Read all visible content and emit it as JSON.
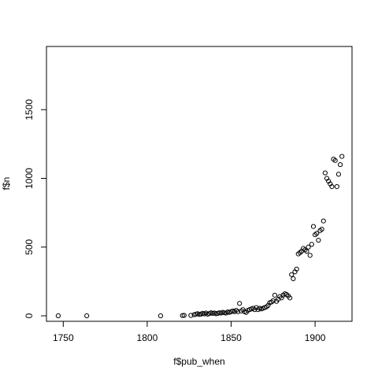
{
  "chart_data": {
    "type": "scatter",
    "title": "",
    "xlabel": "f$pub_when",
    "ylabel": "f$n",
    "xlim": [
      1740,
      1922
    ],
    "ylim": [
      -40,
      1960
    ],
    "xticks": [
      1750,
      1800,
      1850,
      1900
    ],
    "yticks": [
      0,
      500,
      1000,
      1500
    ],
    "grid": false,
    "point_style": "open-circle",
    "points": [
      [
        1747,
        0
      ],
      [
        1764,
        0
      ],
      [
        1808,
        0
      ],
      [
        1821,
        2
      ],
      [
        1822,
        3
      ],
      [
        1826,
        3
      ],
      [
        1828,
        8
      ],
      [
        1829,
        12
      ],
      [
        1830,
        15
      ],
      [
        1831,
        10
      ],
      [
        1832,
        12
      ],
      [
        1833,
        18
      ],
      [
        1834,
        14
      ],
      [
        1835,
        20
      ],
      [
        1836,
        12
      ],
      [
        1837,
        16
      ],
      [
        1838,
        22
      ],
      [
        1839,
        18
      ],
      [
        1840,
        20
      ],
      [
        1841,
        15
      ],
      [
        1842,
        18
      ],
      [
        1843,
        22
      ],
      [
        1844,
        20
      ],
      [
        1845,
        25
      ],
      [
        1846,
        22
      ],
      [
        1847,
        20
      ],
      [
        1848,
        28
      ],
      [
        1849,
        25
      ],
      [
        1850,
        30
      ],
      [
        1851,
        35
      ],
      [
        1852,
        30
      ],
      [
        1853,
        40
      ],
      [
        1854,
        30
      ],
      [
        1855,
        90
      ],
      [
        1856,
        35
      ],
      [
        1857,
        45
      ],
      [
        1858,
        30
      ],
      [
        1859,
        25
      ],
      [
        1860,
        40
      ],
      [
        1861,
        45
      ],
      [
        1862,
        50
      ],
      [
        1863,
        55
      ],
      [
        1864,
        45
      ],
      [
        1865,
        60
      ],
      [
        1866,
        45
      ],
      [
        1867,
        55
      ],
      [
        1868,
        50
      ],
      [
        1869,
        55
      ],
      [
        1870,
        60
      ],
      [
        1871,
        65
      ],
      [
        1872,
        75
      ],
      [
        1873,
        95
      ],
      [
        1874,
        100
      ],
      [
        1875,
        110
      ],
      [
        1876,
        150
      ],
      [
        1877,
        105
      ],
      [
        1878,
        120
      ],
      [
        1879,
        140
      ],
      [
        1880,
        130
      ],
      [
        1881,
        150
      ],
      [
        1882,
        160
      ],
      [
        1883,
        155
      ],
      [
        1884,
        145
      ],
      [
        1885,
        130
      ],
      [
        1886,
        300
      ],
      [
        1887,
        270
      ],
      [
        1888,
        320
      ],
      [
        1889,
        340
      ],
      [
        1890,
        450
      ],
      [
        1891,
        460
      ],
      [
        1892,
        470
      ],
      [
        1893,
        490
      ],
      [
        1894,
        480
      ],
      [
        1895,
        470
      ],
      [
        1896,
        500
      ],
      [
        1897,
        440
      ],
      [
        1898,
        520
      ],
      [
        1899,
        650
      ],
      [
        1900,
        590
      ],
      [
        1901,
        600
      ],
      [
        1902,
        550
      ],
      [
        1903,
        620
      ],
      [
        1904,
        630
      ],
      [
        1905,
        690
      ],
      [
        1906,
        1040
      ],
      [
        1907,
        1000
      ],
      [
        1908,
        980
      ],
      [
        1909,
        960
      ],
      [
        1910,
        940
      ],
      [
        1911,
        1140
      ],
      [
        1912,
        1130
      ],
      [
        1913,
        940
      ],
      [
        1914,
        1030
      ],
      [
        1915,
        1100
      ],
      [
        1916,
        1160
      ]
    ]
  }
}
